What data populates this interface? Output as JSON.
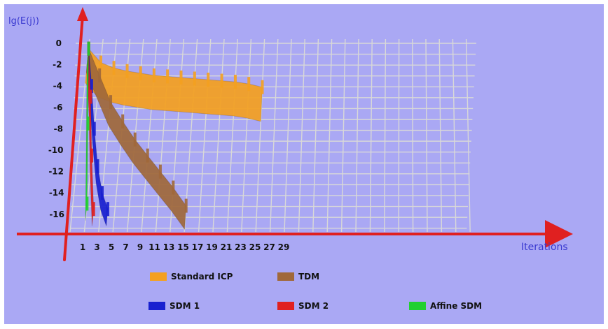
{
  "chart_data": {
    "type": "area",
    "ylabel": "lg(E(j))",
    "xlabel": "Iterations",
    "x_ticks": [
      1,
      3,
      5,
      7,
      9,
      11,
      13,
      15,
      17,
      19,
      21,
      23,
      25,
      27,
      29
    ],
    "y_ticks": [
      0,
      -2,
      -4,
      -6,
      -8,
      -10,
      -12,
      -14,
      -16
    ],
    "xlim": [
      0,
      30
    ],
    "ylim": [
      -17,
      1
    ],
    "grid": true,
    "legend_position": "bottom",
    "series": [
      {
        "name": "Standard ICP",
        "color": "#f4a020",
        "x": [
          1,
          3,
          5,
          7,
          9,
          11,
          13,
          15,
          17,
          19,
          21,
          23,
          25,
          27
        ],
        "y": [
          -0.5,
          -1.8,
          -2.3,
          -2.6,
          -2.8,
          -3.0,
          -3.1,
          -3.2,
          -3.3,
          -3.4,
          -3.5,
          -3.6,
          -3.8,
          -4.1
        ]
      },
      {
        "name": "TDM",
        "color": "#a0683a",
        "x": [
          1,
          3,
          5,
          7,
          9,
          11,
          13,
          15,
          17
        ],
        "y": [
          -0.5,
          -3.0,
          -5.5,
          -7.3,
          -9.0,
          -10.5,
          -12.0,
          -13.5,
          -15.2
        ]
      },
      {
        "name": "SDM 1",
        "color": "#1820d0",
        "x": [
          1,
          2,
          3,
          4,
          5,
          6
        ],
        "y": [
          -0.5,
          -4.0,
          -8.0,
          -11.5,
          -14.0,
          -15.5
        ]
      },
      {
        "name": "SDM 2",
        "color": "#e02020",
        "x": [
          1,
          2,
          3,
          4
        ],
        "y": [
          -0.5,
          -5.0,
          -10.5,
          -15.5
        ]
      },
      {
        "name": "Affine SDM",
        "color": "#20d030",
        "x": [
          1,
          2,
          3
        ],
        "y": [
          -0.5,
          -7.5,
          -15.0
        ]
      }
    ]
  }
}
